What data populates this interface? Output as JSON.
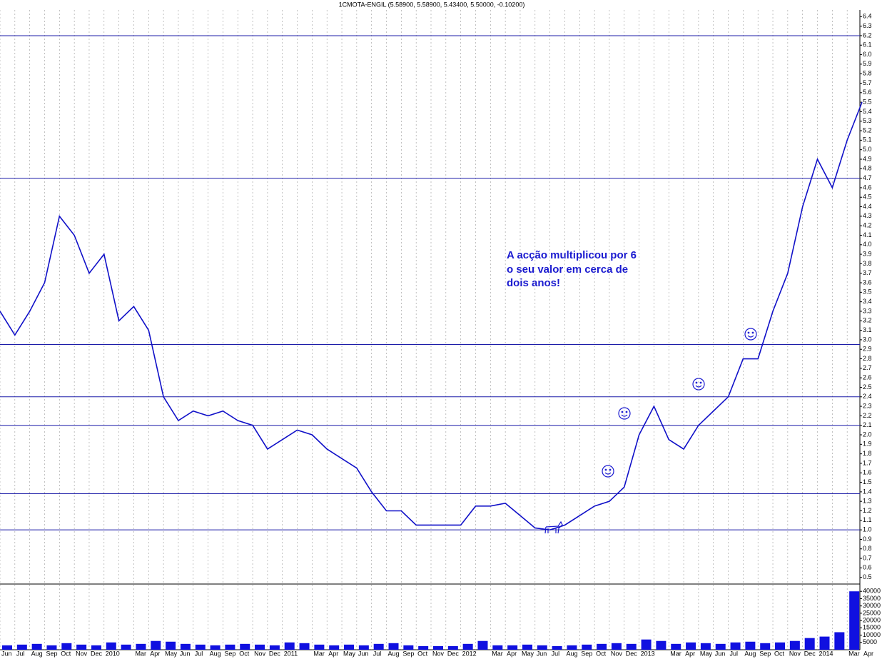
{
  "chart_data": {
    "type": "line",
    "title": "1CMOTA-ENGIL (5.58900, 5.58900, 5.43400, 5.50000, -0.10200)",
    "annotation": [
      "A acção multiplicou por 6",
      "o seu valor em cerca de",
      "dois anos!"
    ],
    "categories": [
      "Jun",
      "Jul",
      "Aug",
      "Sep",
      "Oct",
      "Nov",
      "Dec",
      "2010",
      null,
      "Mar",
      "Apr",
      "May",
      "Jun",
      "Jul",
      "Aug",
      "Sep",
      "Oct",
      "Nov",
      "Dec",
      "2011",
      null,
      "Mar",
      "Apr",
      "May",
      "Jun",
      "Jul",
      "Aug",
      "Sep",
      "Oct",
      "Nov",
      "Dec",
      "2012",
      null,
      "Mar",
      "Apr",
      "May",
      "Jun",
      "Jul",
      "Aug",
      "Sep",
      "Oct",
      "Nov",
      "Dec",
      "2013",
      null,
      "Mar",
      "Apr",
      "May",
      "Jun",
      "Jul",
      "Aug",
      "Sep",
      "Oct",
      "Nov",
      "Dec",
      "2014",
      null,
      "Mar",
      "Apr"
    ],
    "series": [
      {
        "name": "Price",
        "color": "#1010c8",
        "values": [
          3.3,
          3.05,
          3.3,
          3.6,
          4.3,
          4.1,
          3.7,
          3.9,
          3.2,
          3.35,
          3.1,
          2.4,
          2.15,
          2.25,
          2.2,
          2.25,
          2.15,
          2.1,
          1.85,
          1.95,
          2.05,
          2.0,
          1.85,
          1.75,
          1.65,
          1.4,
          1.2,
          1.2,
          1.05,
          1.05,
          1.05,
          1.05,
          1.25,
          1.25,
          1.28,
          1.15,
          1.02,
          1.0,
          1.05,
          1.15,
          1.25,
          1.3,
          1.45,
          2.0,
          2.3,
          1.95,
          1.85,
          2.1,
          2.25,
          2.4,
          2.8,
          2.8,
          3.3,
          3.7,
          4.4,
          4.9,
          4.6,
          5.1,
          5.5
        ]
      },
      {
        "name": "Volume",
        "color": "#1010e0",
        "axis": "y2",
        "values": [
          3000,
          3500,
          4000,
          3000,
          4500,
          3500,
          3000,
          5000,
          3500,
          4000,
          6000,
          5500,
          4000,
          3500,
          3000,
          3500,
          4000,
          3500,
          3000,
          5000,
          4500,
          3500,
          3000,
          3500,
          3000,
          4000,
          4500,
          3000,
          2500,
          2500,
          2500,
          4000,
          6000,
          3000,
          3000,
          3500,
          3000,
          2500,
          3000,
          3500,
          4000,
          4500,
          4000,
          7000,
          6000,
          4000,
          5000,
          4500,
          4000,
          5000,
          5500,
          4500,
          5000,
          6000,
          8000,
          9000,
          12000,
          40000,
          15000
        ]
      }
    ],
    "hlines": [
      1.0,
      1.38,
      2.1,
      2.4,
      2.95,
      4.7,
      6.2
    ],
    "ylim": [
      0.43,
      6.47
    ],
    "yticks": [
      0.5,
      0.6,
      0.7,
      0.8,
      0.9,
      {
        "value": 1,
        "label": "1.0"
      },
      1.1,
      1.2,
      1.3,
      1.4,
      1.5,
      1.6,
      1.7,
      1.8,
      1.9,
      {
        "value": 2,
        "label": "2.0"
      },
      2.1,
      2.2,
      2.3,
      2.4,
      2.5,
      2.6,
      2.7,
      2.8,
      2.9,
      {
        "value": 3,
        "label": "3.0"
      },
      3.1,
      3.2,
      3.3,
      3.4,
      3.5,
      3.6,
      3.7,
      3.8,
      3.9,
      {
        "value": 4,
        "label": "4.0"
      },
      4.1,
      4.2,
      4.3,
      4.4,
      4.5,
      4.6,
      4.7,
      4.8,
      4.9,
      {
        "value": 5,
        "label": "5.0"
      },
      5.1,
      5.2,
      5.3,
      5.4,
      5.5,
      5.6,
      5.7,
      5.8,
      5.9,
      {
        "value": 6,
        "label": "6.0"
      },
      6.1,
      6.2,
      6.3,
      6.4
    ],
    "y2lim": [
      0,
      45000
    ],
    "y2ticks": [
      5000,
      10000,
      15000,
      20000,
      25000,
      30000,
      35000,
      40000
    ],
    "grid": true
  }
}
